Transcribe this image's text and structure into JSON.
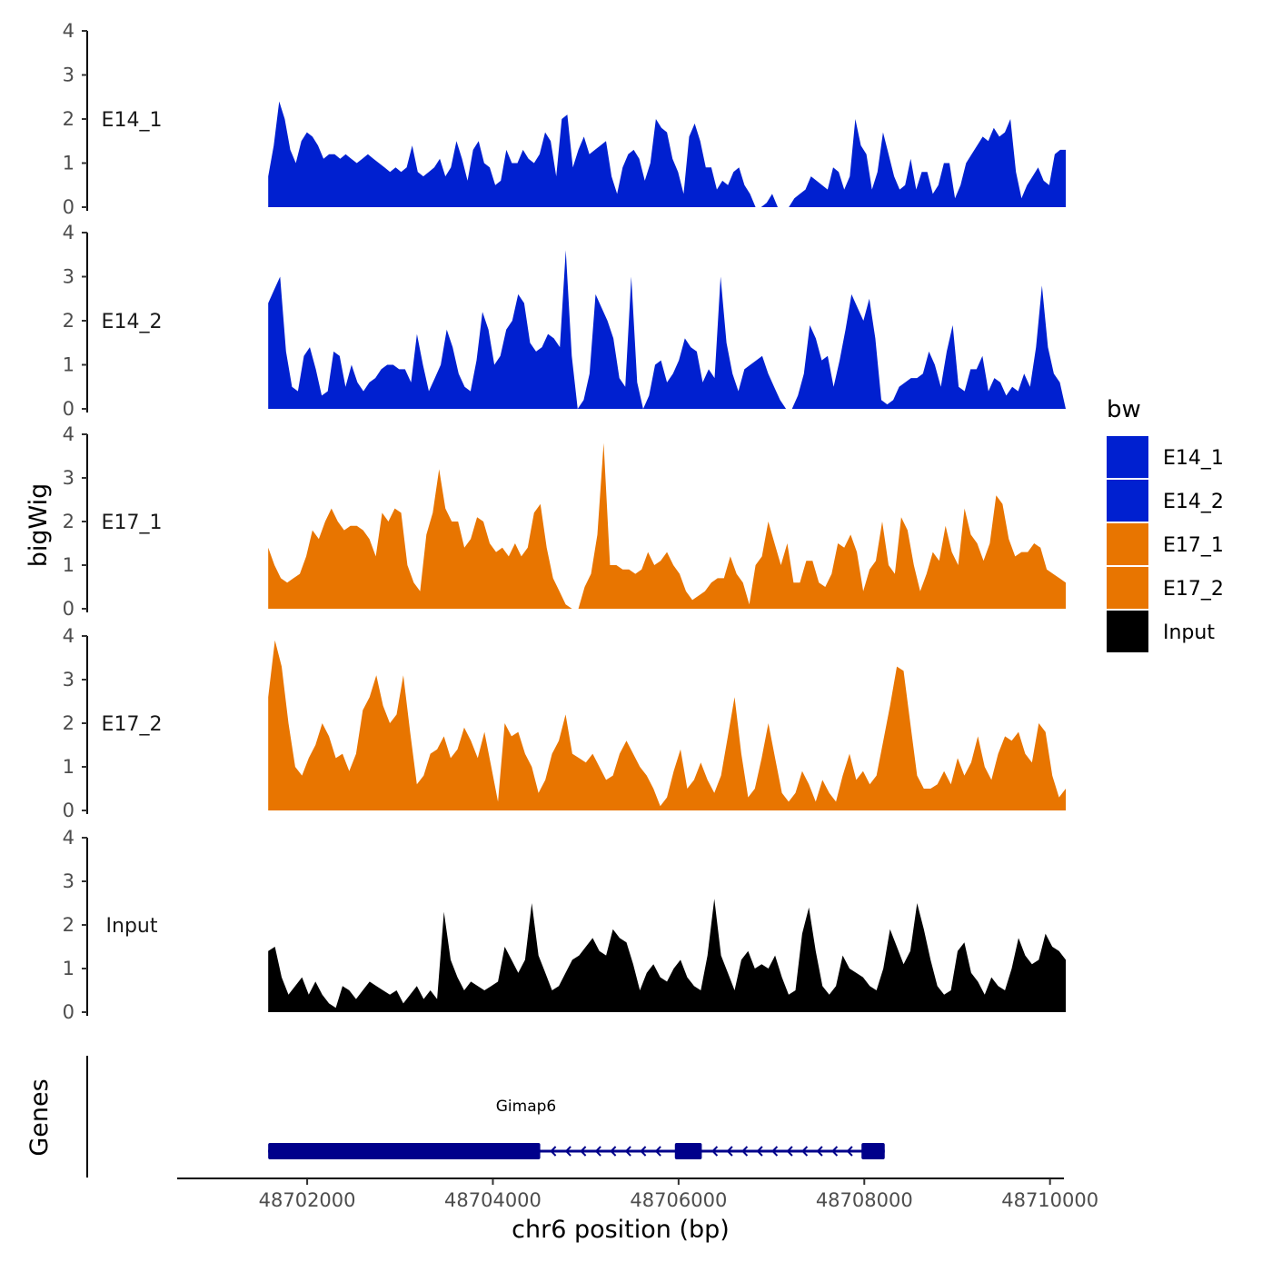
{
  "chart_data": {
    "type": "area",
    "title": "",
    "ylabel": "bigWig",
    "xlabel": "chr6 position (bp)",
    "xlim": [
      48700600,
      48710150
    ],
    "x_start": 48701580,
    "x_end": 48710170,
    "ylim": [
      0,
      4
    ],
    "y_ticks": [
      "0",
      "1",
      "2",
      "3",
      "4"
    ],
    "x_ticks": [
      {
        "value": 48702000,
        "label": "48702000"
      },
      {
        "value": 48704000,
        "label": "48704000"
      },
      {
        "value": 48706000,
        "label": "48706000"
      },
      {
        "value": 48708000,
        "label": "48708000"
      },
      {
        "value": 48710000,
        "label": "48710000"
      }
    ],
    "tracks": [
      {
        "name": "E14_1",
        "color": "#0020D0",
        "values": [
          0.7,
          1.4,
          2.4,
          2.0,
          1.3,
          1.0,
          1.5,
          1.7,
          1.6,
          1.4,
          1.1,
          1.2,
          1.2,
          1.1,
          1.2,
          1.1,
          1.0,
          1.1,
          1.2,
          1.1,
          1.0,
          0.9,
          0.8,
          0.9,
          0.8,
          0.9,
          1.4,
          0.8,
          0.7,
          0.8,
          0.9,
          1.1,
          0.7,
          0.9,
          1.5,
          1.1,
          0.6,
          1.3,
          1.5,
          1.0,
          0.9,
          0.5,
          0.6,
          1.3,
          1.0,
          1.0,
          1.3,
          1.1,
          1.0,
          1.2,
          1.7,
          1.5,
          0.7,
          2.0,
          2.1,
          0.9,
          1.3,
          1.6,
          1.2,
          1.3,
          1.4,
          1.5,
          0.7,
          0.3,
          0.9,
          1.2,
          1.3,
          1.1,
          0.6,
          1.0,
          2.0,
          1.8,
          1.7,
          1.1,
          0.8,
          0.3,
          1.6,
          1.9,
          1.5,
          0.9,
          0.9,
          0.4,
          0.6,
          0.5,
          0.8,
          0.9,
          0.5,
          0.3,
          0.0,
          0.0,
          0.1,
          0.3,
          0.0,
          0.0,
          0.0,
          0.2,
          0.3,
          0.4,
          0.7,
          0.6,
          0.5,
          0.4,
          0.9,
          0.8,
          0.4,
          0.7,
          2.0,
          1.4,
          1.2,
          0.4,
          0.8,
          1.7,
          1.2,
          0.7,
          0.4,
          0.5,
          1.1,
          0.4,
          0.8,
          0.8,
          0.3,
          0.5,
          1.0,
          1.0,
          0.2,
          0.5,
          1.0,
          1.2,
          1.4,
          1.6,
          1.5,
          1.8,
          1.6,
          1.7,
          2.0,
          0.8,
          0.2,
          0.5,
          0.7,
          0.9,
          0.6,
          0.5,
          1.2,
          1.3,
          1.3
        ]
      },
      {
        "name": "E14_2",
        "color": "#0020D0",
        "values": [
          2.4,
          2.7,
          3.0,
          1.3,
          0.5,
          0.4,
          1.2,
          1.4,
          0.9,
          0.3,
          0.4,
          1.3,
          1.2,
          0.5,
          1.0,
          0.6,
          0.4,
          0.6,
          0.7,
          0.9,
          1.0,
          1.0,
          0.9,
          0.9,
          0.6,
          1.7,
          1.0,
          0.4,
          0.7,
          1.0,
          1.8,
          1.4,
          0.8,
          0.5,
          0.4,
          1.1,
          2.2,
          1.8,
          1.0,
          1.2,
          1.8,
          2.0,
          2.6,
          2.4,
          1.5,
          1.3,
          1.4,
          1.7,
          1.6,
          1.4,
          3.6,
          1.2,
          0.0,
          0.2,
          0.8,
          2.6,
          2.3,
          2.0,
          1.6,
          0.7,
          0.5,
          3.0,
          0.6,
          0.0,
          0.3,
          1.0,
          1.1,
          0.6,
          0.8,
          1.1,
          1.6,
          1.4,
          1.3,
          0.6,
          0.9,
          0.7,
          3.0,
          1.5,
          0.8,
          0.4,
          0.9,
          1.0,
          1.1,
          1.2,
          0.8,
          0.5,
          0.2,
          0.0,
          0.0,
          0.3,
          0.8,
          1.9,
          1.6,
          1.1,
          1.2,
          0.5,
          1.1,
          1.8,
          2.6,
          2.3,
          2.0,
          2.5,
          1.6,
          0.2,
          0.1,
          0.2,
          0.5,
          0.6,
          0.7,
          0.7,
          0.8,
          1.3,
          1.0,
          0.5,
          1.3,
          1.9,
          0.5,
          0.4,
          0.9,
          0.9,
          1.2,
          0.4,
          0.7,
          0.6,
          0.3,
          0.5,
          0.4,
          0.8,
          0.5,
          1.4,
          2.8,
          1.4,
          0.8,
          0.6,
          0.0
        ]
      },
      {
        "name": "E17_1",
        "color": "#E87500",
        "values": [
          1.4,
          1.0,
          0.7,
          0.6,
          0.7,
          0.8,
          1.2,
          1.8,
          1.6,
          2.0,
          2.3,
          2.0,
          1.8,
          1.9,
          1.9,
          1.8,
          1.6,
          1.2,
          2.2,
          2.0,
          2.3,
          2.2,
          1.0,
          0.6,
          0.4,
          1.7,
          2.2,
          3.2,
          2.3,
          2.0,
          2.0,
          1.4,
          1.6,
          2.1,
          2.0,
          1.5,
          1.3,
          1.4,
          1.2,
          1.5,
          1.2,
          1.4,
          2.2,
          2.4,
          1.4,
          0.7,
          0.4,
          0.1,
          0.0,
          0.0,
          0.5,
          0.8,
          1.7,
          3.8,
          1.0,
          1.0,
          0.9,
          0.9,
          0.8,
          0.9,
          1.3,
          1.0,
          1.1,
          1.3,
          1.0,
          0.8,
          0.4,
          0.2,
          0.3,
          0.4,
          0.6,
          0.7,
          0.7,
          1.2,
          0.8,
          0.6,
          0.1,
          1.0,
          1.2,
          2.0,
          1.5,
          1.0,
          1.5,
          0.6,
          0.6,
          1.1,
          1.1,
          0.6,
          0.5,
          0.8,
          1.5,
          1.4,
          1.7,
          1.3,
          0.4,
          0.9,
          1.1,
          2.0,
          1.0,
          0.8,
          2.1,
          1.8,
          1.0,
          0.4,
          0.8,
          1.3,
          1.1,
          1.9,
          1.3,
          1.0,
          2.3,
          1.7,
          1.5,
          1.1,
          1.5,
          2.6,
          2.4,
          1.6,
          1.2,
          1.3,
          1.3,
          1.5,
          1.4,
          0.9,
          0.8,
          0.7,
          0.6
        ]
      },
      {
        "name": "E17_2",
        "color": "#E87500",
        "values": [
          2.6,
          3.9,
          3.3,
          2.0,
          1.0,
          0.8,
          1.2,
          1.5,
          2.0,
          1.7,
          1.2,
          1.3,
          0.9,
          1.3,
          2.3,
          2.6,
          3.1,
          2.4,
          2.0,
          2.2,
          3.1,
          1.8,
          0.6,
          0.8,
          1.3,
          1.4,
          1.7,
          1.2,
          1.4,
          1.9,
          1.6,
          1.2,
          1.8,
          1.0,
          0.2,
          2.0,
          1.7,
          1.8,
          1.3,
          1.0,
          0.4,
          0.7,
          1.3,
          1.6,
          2.2,
          1.3,
          1.2,
          1.1,
          1.3,
          1.0,
          0.7,
          0.8,
          1.3,
          1.6,
          1.3,
          1.0,
          0.8,
          0.5,
          0.1,
          0.3,
          0.9,
          1.4,
          0.5,
          0.7,
          1.1,
          0.7,
          0.4,
          0.8,
          1.7,
          2.6,
          1.3,
          0.3,
          0.5,
          1.2,
          2.0,
          1.2,
          0.4,
          0.2,
          0.4,
          0.9,
          0.6,
          0.2,
          0.7,
          0.4,
          0.2,
          0.8,
          1.3,
          0.7,
          0.9,
          0.6,
          0.8,
          1.6,
          2.4,
          3.3,
          3.2,
          2.0,
          0.8,
          0.5,
          0.5,
          0.6,
          0.9,
          0.6,
          1.2,
          0.8,
          1.1,
          1.7,
          1.0,
          0.7,
          1.3,
          1.7,
          1.6,
          1.8,
          1.3,
          1.1,
          2.0,
          1.8,
          0.8,
          0.3,
          0.5
        ]
      },
      {
        "name": "Input",
        "color": "#000000",
        "values": [
          1.4,
          1.5,
          0.8,
          0.4,
          0.6,
          0.8,
          0.4,
          0.7,
          0.4,
          0.2,
          0.1,
          0.6,
          0.5,
          0.3,
          0.5,
          0.7,
          0.6,
          0.5,
          0.4,
          0.5,
          0.2,
          0.4,
          0.6,
          0.3,
          0.5,
          0.3,
          2.3,
          1.2,
          0.8,
          0.5,
          0.7,
          0.6,
          0.5,
          0.6,
          0.7,
          1.5,
          1.2,
          0.9,
          1.2,
          2.5,
          1.3,
          0.9,
          0.5,
          0.6,
          0.9,
          1.2,
          1.3,
          1.5,
          1.7,
          1.4,
          1.3,
          1.9,
          1.7,
          1.6,
          1.1,
          0.5,
          0.9,
          1.1,
          0.8,
          0.7,
          1.0,
          1.2,
          0.8,
          0.6,
          0.5,
          1.3,
          2.6,
          1.3,
          0.9,
          0.5,
          1.2,
          1.4,
          1.0,
          1.1,
          1.0,
          1.3,
          0.8,
          0.4,
          0.5,
          1.8,
          2.4,
          1.4,
          0.6,
          0.4,
          0.6,
          1.3,
          1.0,
          0.9,
          0.8,
          0.6,
          0.5,
          1.0,
          1.9,
          1.5,
          1.1,
          1.4,
          2.5,
          1.9,
          1.2,
          0.6,
          0.4,
          0.5,
          1.4,
          1.6,
          0.9,
          0.7,
          0.4,
          0.8,
          0.6,
          0.5,
          1.0,
          1.7,
          1.3,
          1.1,
          1.2,
          1.8,
          1.5,
          1.4,
          1.2
        ]
      }
    ],
    "gene": {
      "name": "Gimap6",
      "color": "#00008B",
      "strand": "-",
      "start": 48701580,
      "end": 48708220,
      "exons": [
        [
          48701580,
          48704510
        ],
        [
          48705960,
          48706250
        ],
        [
          48707970,
          48708220
        ]
      ]
    },
    "gene_track_label": "Genes",
    "legend": {
      "title": "bw",
      "entries": [
        {
          "label": "E14_1",
          "color": "#0020D0"
        },
        {
          "label": "E14_2",
          "color": "#0020D0"
        },
        {
          "label": "E17_1",
          "color": "#E87500"
        },
        {
          "label": "E17_2",
          "color": "#E87500"
        },
        {
          "label": "Input",
          "color": "#000000"
        }
      ]
    }
  }
}
